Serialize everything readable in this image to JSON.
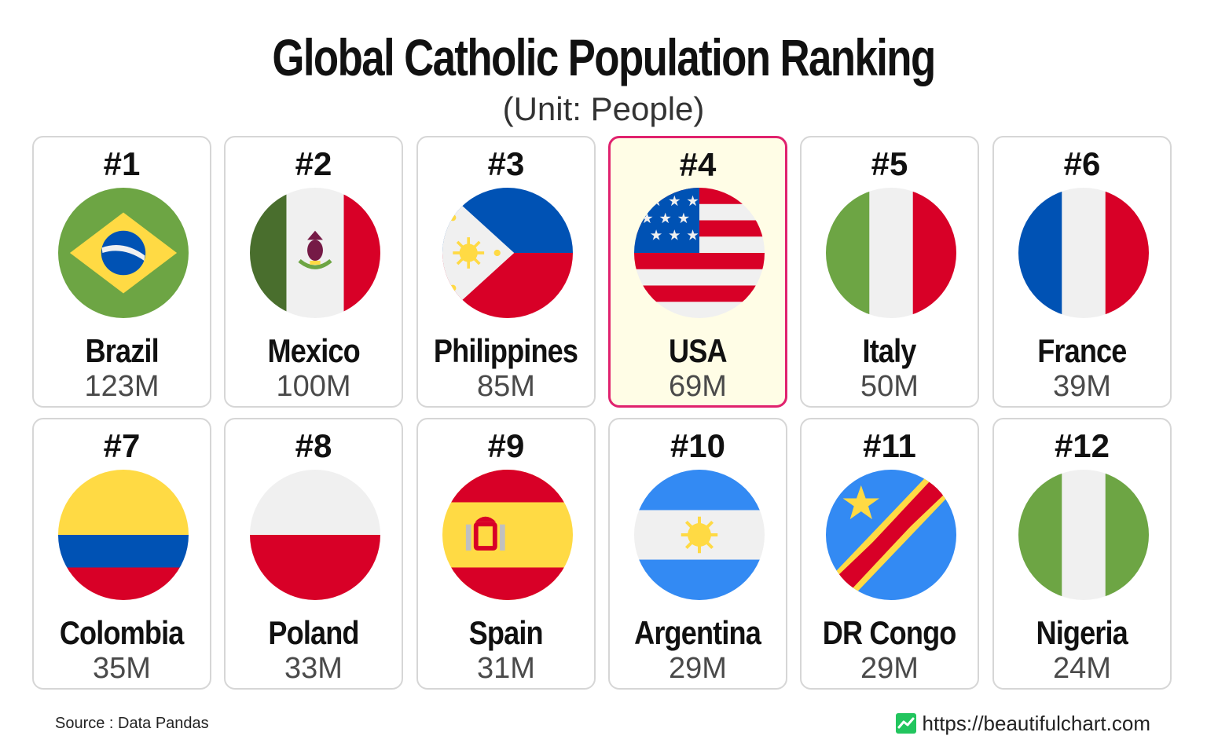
{
  "title": "Global Catholic Population Ranking",
  "subtitle": "(Unit: People)",
  "footer": {
    "source": "Source : Data Pandas",
    "site": "https://beautifulchart.com"
  },
  "colors": {
    "card_border": "#d6d6d6",
    "highlight_border": "#e0226e",
    "highlight_background": "#fffde6"
  },
  "chart_data": {
    "type": "table",
    "title": "Global Catholic Population Ranking",
    "subtitle": "(Unit: People)",
    "highlighted": "USA",
    "columns": [
      "rank",
      "country",
      "value_label",
      "value"
    ],
    "rows": [
      {
        "rank": "#1",
        "country": "Brazil",
        "value_label": "123M",
        "value": 123000000,
        "flag": "brazil-flag-icon"
      },
      {
        "rank": "#2",
        "country": "Mexico",
        "value_label": "100M",
        "value": 100000000,
        "flag": "mexico-flag-icon"
      },
      {
        "rank": "#3",
        "country": "Philippines",
        "value_label": "85M",
        "value": 85000000,
        "flag": "philippines-flag-icon"
      },
      {
        "rank": "#4",
        "country": "USA",
        "value_label": "69M",
        "value": 69000000,
        "flag": "usa-flag-icon"
      },
      {
        "rank": "#5",
        "country": "Italy",
        "value_label": "50M",
        "value": 50000000,
        "flag": "italy-flag-icon"
      },
      {
        "rank": "#6",
        "country": "France",
        "value_label": "39M",
        "value": 39000000,
        "flag": "france-flag-icon"
      },
      {
        "rank": "#7",
        "country": "Colombia",
        "value_label": "35M",
        "value": 35000000,
        "flag": "colombia-flag-icon"
      },
      {
        "rank": "#8",
        "country": "Poland",
        "value_label": "33M",
        "value": 33000000,
        "flag": "poland-flag-icon"
      },
      {
        "rank": "#9",
        "country": "Spain",
        "value_label": "31M",
        "value": 31000000,
        "flag": "spain-flag-icon"
      },
      {
        "rank": "#10",
        "country": "Argentina",
        "value_label": "29M",
        "value": 29000000,
        "flag": "argentina-flag-icon"
      },
      {
        "rank": "#11",
        "country": "DR Congo",
        "value_label": "29M",
        "value": 29000000,
        "flag": "dr-congo-flag-icon"
      },
      {
        "rank": "#12",
        "country": "Nigeria",
        "value_label": "24M",
        "value": 24000000,
        "flag": "nigeria-flag-icon"
      }
    ]
  }
}
